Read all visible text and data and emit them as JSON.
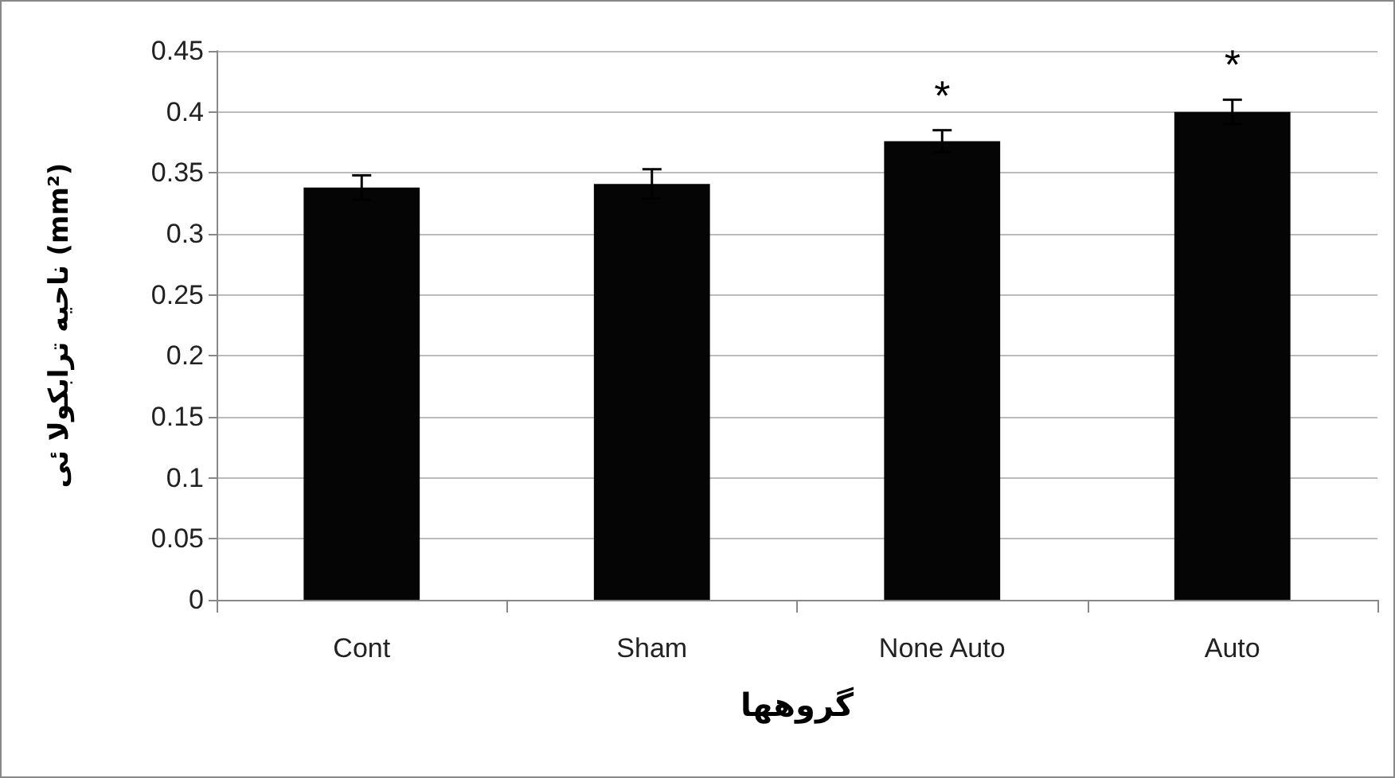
{
  "chart_data": {
    "type": "bar",
    "xlabel": "گروهها",
    "ylabel": "ناحیه ترابکولا ئی (mm²)",
    "categories": [
      "Cont",
      "Sham",
      "None Auto",
      "Auto"
    ],
    "values": [
      0.338,
      0.341,
      0.376,
      0.4
    ],
    "errors": [
      0.01,
      0.012,
      0.009,
      0.01
    ],
    "color": "#050505",
    "ylim": [
      0,
      0.45
    ],
    "yticks": [
      0,
      0.05,
      0.1,
      0.15,
      0.2,
      0.25,
      0.3,
      0.35,
      0.4,
      0.45
    ],
    "grid": "y",
    "annotations": [
      {
        "text": "*",
        "x": "None Auto",
        "y": 0.376
      },
      {
        "text": "*",
        "x": "Auto",
        "y": 0.4
      }
    ]
  }
}
